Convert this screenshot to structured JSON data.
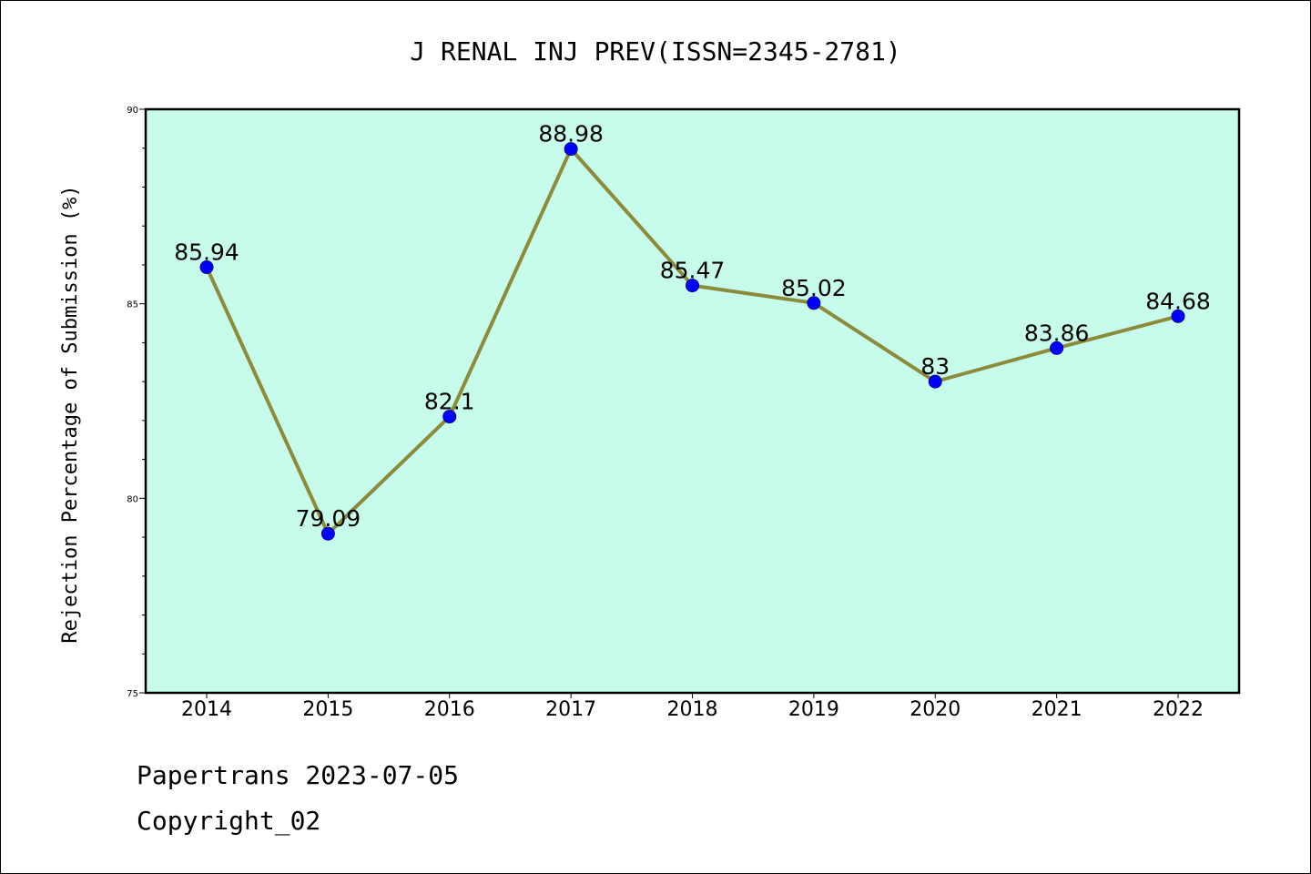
{
  "chart_data": {
    "type": "line",
    "title": "J RENAL INJ PREV(ISSN=2345-2781)",
    "xlabel": "",
    "ylabel": "Rejection Percentage of Submission (%)",
    "categories": [
      "2014",
      "2015",
      "2016",
      "2017",
      "2018",
      "2019",
      "2020",
      "2021",
      "2022"
    ],
    "series": [
      {
        "values": [
          85.94,
          79.09,
          82.1,
          88.98,
          85.47,
          85.02,
          83,
          83.86,
          84.68
        ],
        "labels": [
          "85.94",
          "79.09",
          "82.1",
          "88.98",
          "85.47",
          "85.02",
          "83",
          "83.86",
          "84.68"
        ]
      }
    ],
    "ylim": [
      75,
      90
    ],
    "yticks": [
      75,
      80,
      85,
      90
    ],
    "grid": false,
    "legend": "none",
    "colors": {
      "plot_background": "#c7fcec",
      "line": "#8b8b3a",
      "marker": "#0000ff"
    }
  },
  "footer": {
    "source": "Papertrans 2023-07-05",
    "copyright": "Copyright_02"
  }
}
